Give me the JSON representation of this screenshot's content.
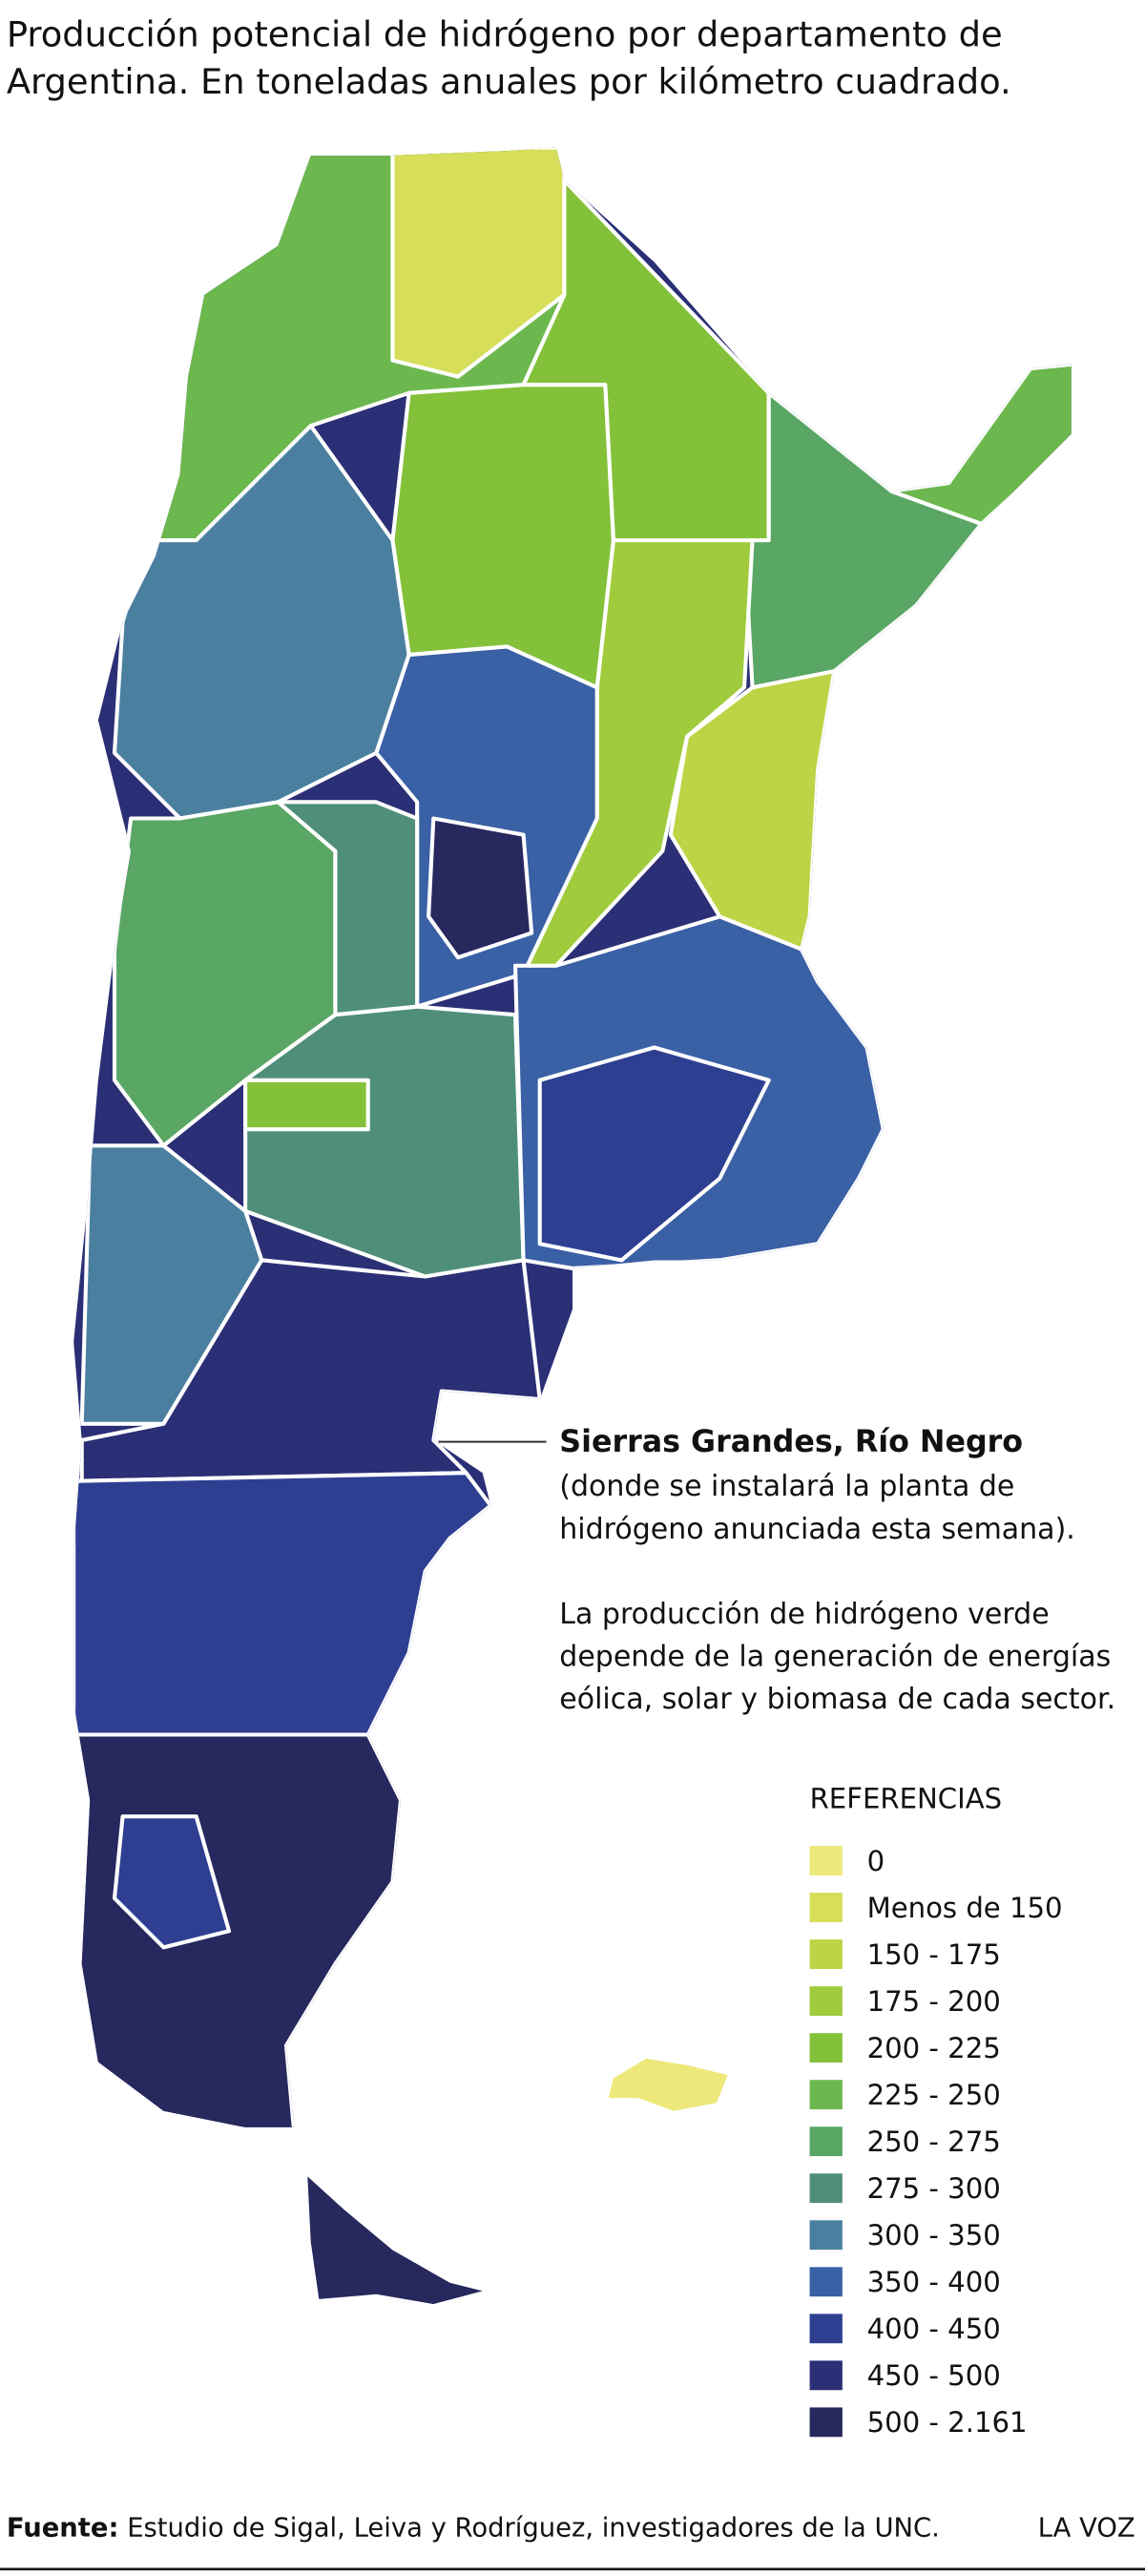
{
  "title": {
    "lines": [
      "Producción potencial de hidrógeno por departamento de",
      "Argentina. En toneladas anuales por kilómetro cuadrado."
    ]
  },
  "annotation": {
    "place": "Sierras Grandes, Río Negro",
    "paragraphs": [
      [
        "(donde se instalará la planta de",
        "hidrógeno anunciada esta semana)."
      ],
      [
        "La producción de hidrógeno verde",
        "depende de la generación de energías",
        "eólica, solar y biomasa de cada sector."
      ]
    ]
  },
  "legend": {
    "title": "REFERENCIAS",
    "items": [
      {
        "label": "0",
        "color": "#ede87a"
      },
      {
        "label": "Menos de 150",
        "color": "#d6de5a"
      },
      {
        "label": "150 - 175",
        "color": "#bcd445"
      },
      {
        "label": "175 - 200",
        "color": "#9fcb3c"
      },
      {
        "label": "200 - 225",
        "color": "#84c13a"
      },
      {
        "label": "225 - 250",
        "color": "#6cb84e"
      },
      {
        "label": "250 - 275",
        "color": "#5aa664"
      },
      {
        "label": "275 - 300",
        "color": "#4f8f7a"
      },
      {
        "label": "300 - 350",
        "color": "#4a7fa0"
      },
      {
        "label": "350 - 400",
        "color": "#3a60a5"
      },
      {
        "label": "400 - 450",
        "color": "#2e3f92"
      },
      {
        "label": "450 - 500",
        "color": "#2b2f75"
      },
      {
        "label": "500 - 2.161",
        "color": "#27285e"
      }
    ]
  },
  "footer": {
    "label": "Fuente:",
    "text": "Estudio de Sigal, Leiva y Rodríguez, investigadores de la UNC.",
    "brand": "LA VOZ"
  }
}
